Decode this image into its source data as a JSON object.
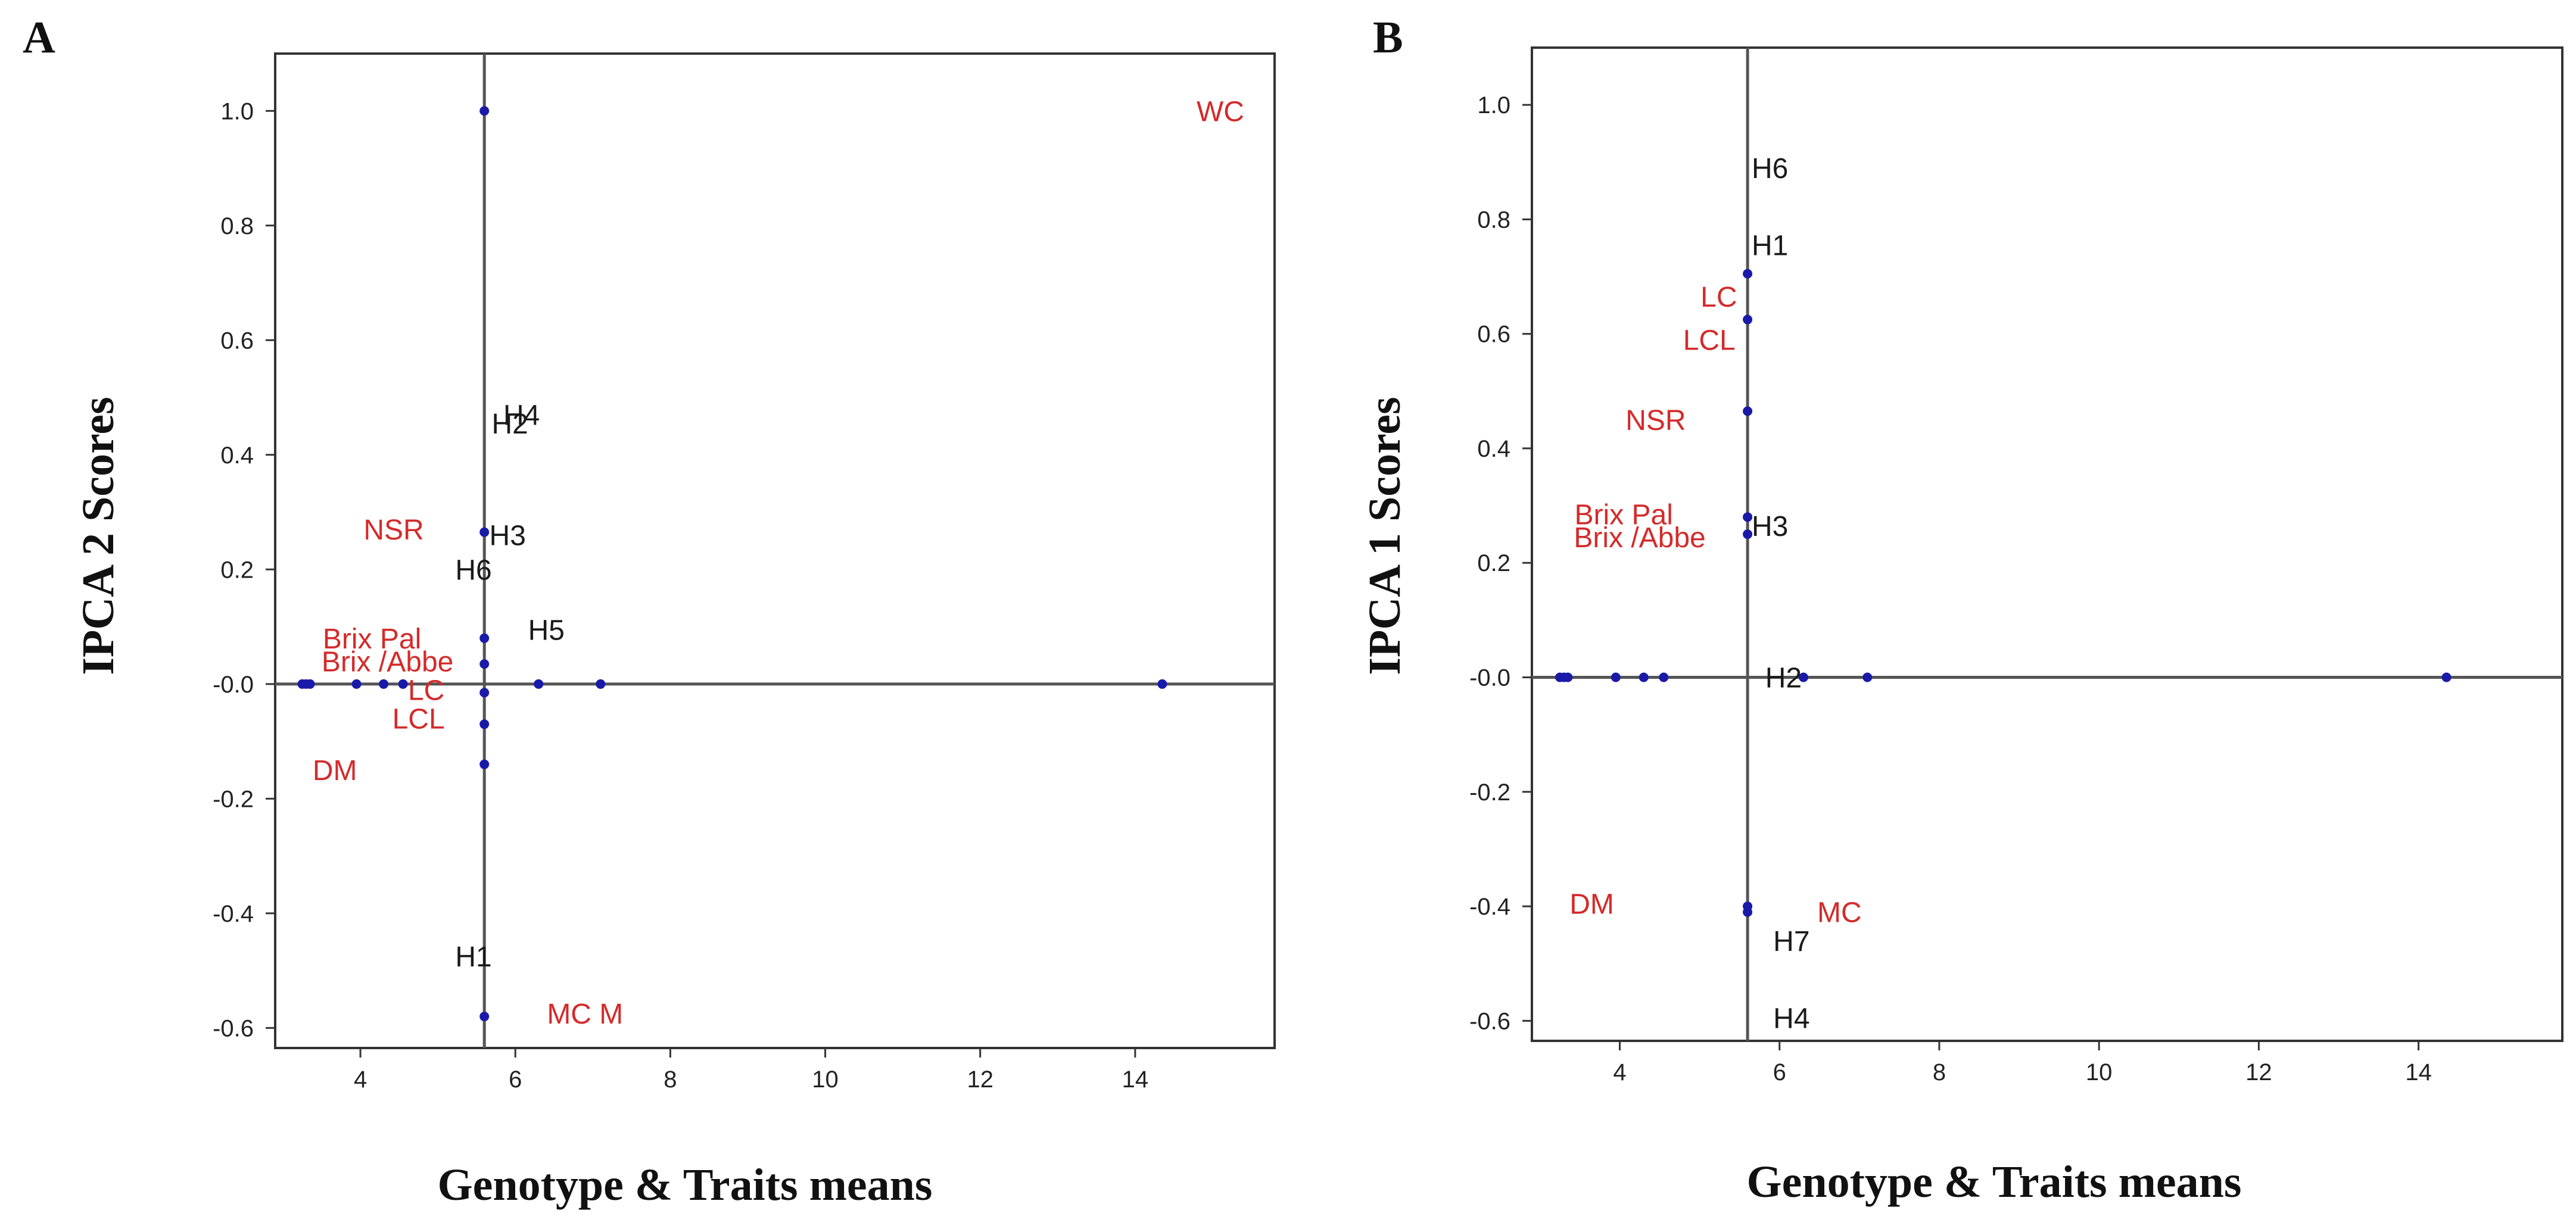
{
  "chart_data": [
    {
      "panel": "A",
      "type": "scatter",
      "xlabel": "Genotype & Traits means",
      "ylabel": "IPCA 2 Scores",
      "xlim": [
        2.9,
        15.8
      ],
      "ylim": [
        -0.635,
        1.1
      ],
      "xticks": [
        4,
        6,
        8,
        10,
        12,
        14
      ],
      "yticks": [
        1.0,
        0.8,
        0.6,
        0.4,
        0.2,
        0.0,
        -0.2,
        -0.4,
        -0.6
      ],
      "ytick_labels": [
        "1.0",
        "0.8",
        "0.6",
        "0.4",
        "0.2",
        "-0.0",
        "-0.2",
        "-0.4",
        "-0.6"
      ],
      "vline_x": 5.6,
      "hline_y": 0.0,
      "points": [
        {
          "x": 3.25,
          "y": 0.0
        },
        {
          "x": 3.3,
          "y": 0.0
        },
        {
          "x": 3.35,
          "y": 0.0
        },
        {
          "x": 3.95,
          "y": 0.0
        },
        {
          "x": 4.3,
          "y": 0.0
        },
        {
          "x": 4.55,
          "y": 0.0
        },
        {
          "x": 6.3,
          "y": 0.0
        },
        {
          "x": 7.1,
          "y": 0.0
        },
        {
          "x": 14.35,
          "y": 0.0
        },
        {
          "x": 5.6,
          "y": 1.0
        },
        {
          "x": 5.6,
          "y": 0.265
        },
        {
          "x": 5.6,
          "y": 0.08
        },
        {
          "x": 5.6,
          "y": 0.035
        },
        {
          "x": 5.6,
          "y": -0.015
        },
        {
          "x": 5.6,
          "y": -0.07
        },
        {
          "x": 5.6,
          "y": -0.14
        },
        {
          "x": 5.6,
          "y": -0.58
        }
      ],
      "labels": [
        {
          "text": "WC",
          "x": 15.1,
          "y": 1.0,
          "kind": "trait"
        },
        {
          "text": "H4",
          "x": 6.08,
          "y": 0.47,
          "kind": "genotype"
        },
        {
          "text": "H2",
          "x": 5.93,
          "y": 0.455,
          "kind": "genotype"
        },
        {
          "text": "NSR",
          "x": 4.43,
          "y": 0.27,
          "kind": "trait"
        },
        {
          "text": "H3",
          "x": 5.9,
          "y": 0.26,
          "kind": "genotype"
        },
        {
          "text": "H6",
          "x": 5.46,
          "y": 0.2,
          "kind": "genotype"
        },
        {
          "text": "H5",
          "x": 6.4,
          "y": 0.095,
          "kind": "genotype"
        },
        {
          "text": "Brix Pal",
          "x": 4.15,
          "y": 0.08,
          "kind": "trait"
        },
        {
          "text": "Brix /Abbe",
          "x": 4.35,
          "y": 0.04,
          "kind": "trait"
        },
        {
          "text": "LC",
          "x": 4.85,
          "y": -0.01,
          "kind": "trait"
        },
        {
          "text": "LCL",
          "x": 4.75,
          "y": -0.06,
          "kind": "trait"
        },
        {
          "text": "DM",
          "x": 3.67,
          "y": -0.15,
          "kind": "trait"
        },
        {
          "text": "H1",
          "x": 5.46,
          "y": -0.475,
          "kind": "genotype"
        },
        {
          "text": "MC M",
          "x": 6.9,
          "y": -0.575,
          "kind": "trait"
        }
      ]
    },
    {
      "panel": "B",
      "type": "scatter",
      "xlabel": "Genotype & Traits means",
      "ylabel": "IPCA 1 Scores",
      "xlim": [
        2.9,
        15.8
      ],
      "ylim": [
        -0.635,
        1.1
      ],
      "xticks": [
        4,
        6,
        8,
        10,
        12,
        14
      ],
      "yticks": [
        1.0,
        0.8,
        0.6,
        0.4,
        0.2,
        0.0,
        -0.2,
        -0.4,
        -0.6
      ],
      "ytick_labels": [
        "1.0",
        "0.8",
        "0.6",
        "0.4",
        "0.2",
        "-0.0",
        "-0.2",
        "-0.4",
        "-0.6"
      ],
      "vline_x": 5.6,
      "hline_y": 0.0,
      "points": [
        {
          "x": 3.25,
          "y": 0.0
        },
        {
          "x": 3.3,
          "y": 0.0
        },
        {
          "x": 3.35,
          "y": 0.0
        },
        {
          "x": 3.95,
          "y": 0.0
        },
        {
          "x": 4.3,
          "y": 0.0
        },
        {
          "x": 4.55,
          "y": 0.0
        },
        {
          "x": 6.3,
          "y": 0.0
        },
        {
          "x": 7.1,
          "y": 0.0
        },
        {
          "x": 14.35,
          "y": 0.0
        },
        {
          "x": 5.6,
          "y": 0.705
        },
        {
          "x": 5.6,
          "y": 0.625
        },
        {
          "x": 5.6,
          "y": 0.465
        },
        {
          "x": 5.6,
          "y": 0.28
        },
        {
          "x": 5.6,
          "y": 0.25
        },
        {
          "x": 5.6,
          "y": -0.4
        },
        {
          "x": 5.6,
          "y": -0.41
        }
      ],
      "labels": [
        {
          "text": "H6",
          "x": 5.88,
          "y": 0.89,
          "kind": "genotype"
        },
        {
          "text": "H1",
          "x": 5.88,
          "y": 0.755,
          "kind": "genotype"
        },
        {
          "text": "LC",
          "x": 5.24,
          "y": 0.665,
          "kind": "trait"
        },
        {
          "text": "LCL",
          "x": 5.12,
          "y": 0.59,
          "kind": "trait"
        },
        {
          "text": "NSR",
          "x": 4.45,
          "y": 0.45,
          "kind": "trait"
        },
        {
          "text": "Brix Pal",
          "x": 4.05,
          "y": 0.285,
          "kind": "trait"
        },
        {
          "text": "H3",
          "x": 5.88,
          "y": 0.265,
          "kind": "genotype"
        },
        {
          "text": "Brix /Abbe",
          "x": 4.25,
          "y": 0.245,
          "kind": "trait"
        },
        {
          "text": "H2",
          "x": 6.05,
          "y": 0.0,
          "kind": "genotype"
        },
        {
          "text": "DM",
          "x": 3.65,
          "y": -0.395,
          "kind": "trait"
        },
        {
          "text": "MC",
          "x": 6.75,
          "y": -0.41,
          "kind": "trait"
        },
        {
          "text": "H7",
          "x": 6.15,
          "y": -0.46,
          "kind": "genotype"
        },
        {
          "text": "H4",
          "x": 6.15,
          "y": -0.595,
          "kind": "genotype"
        }
      ]
    }
  ],
  "colors": {
    "trait": "#d42a2a",
    "genotype": "#1a1a1a",
    "point": "#1a1aa8",
    "refline": "#555555"
  }
}
